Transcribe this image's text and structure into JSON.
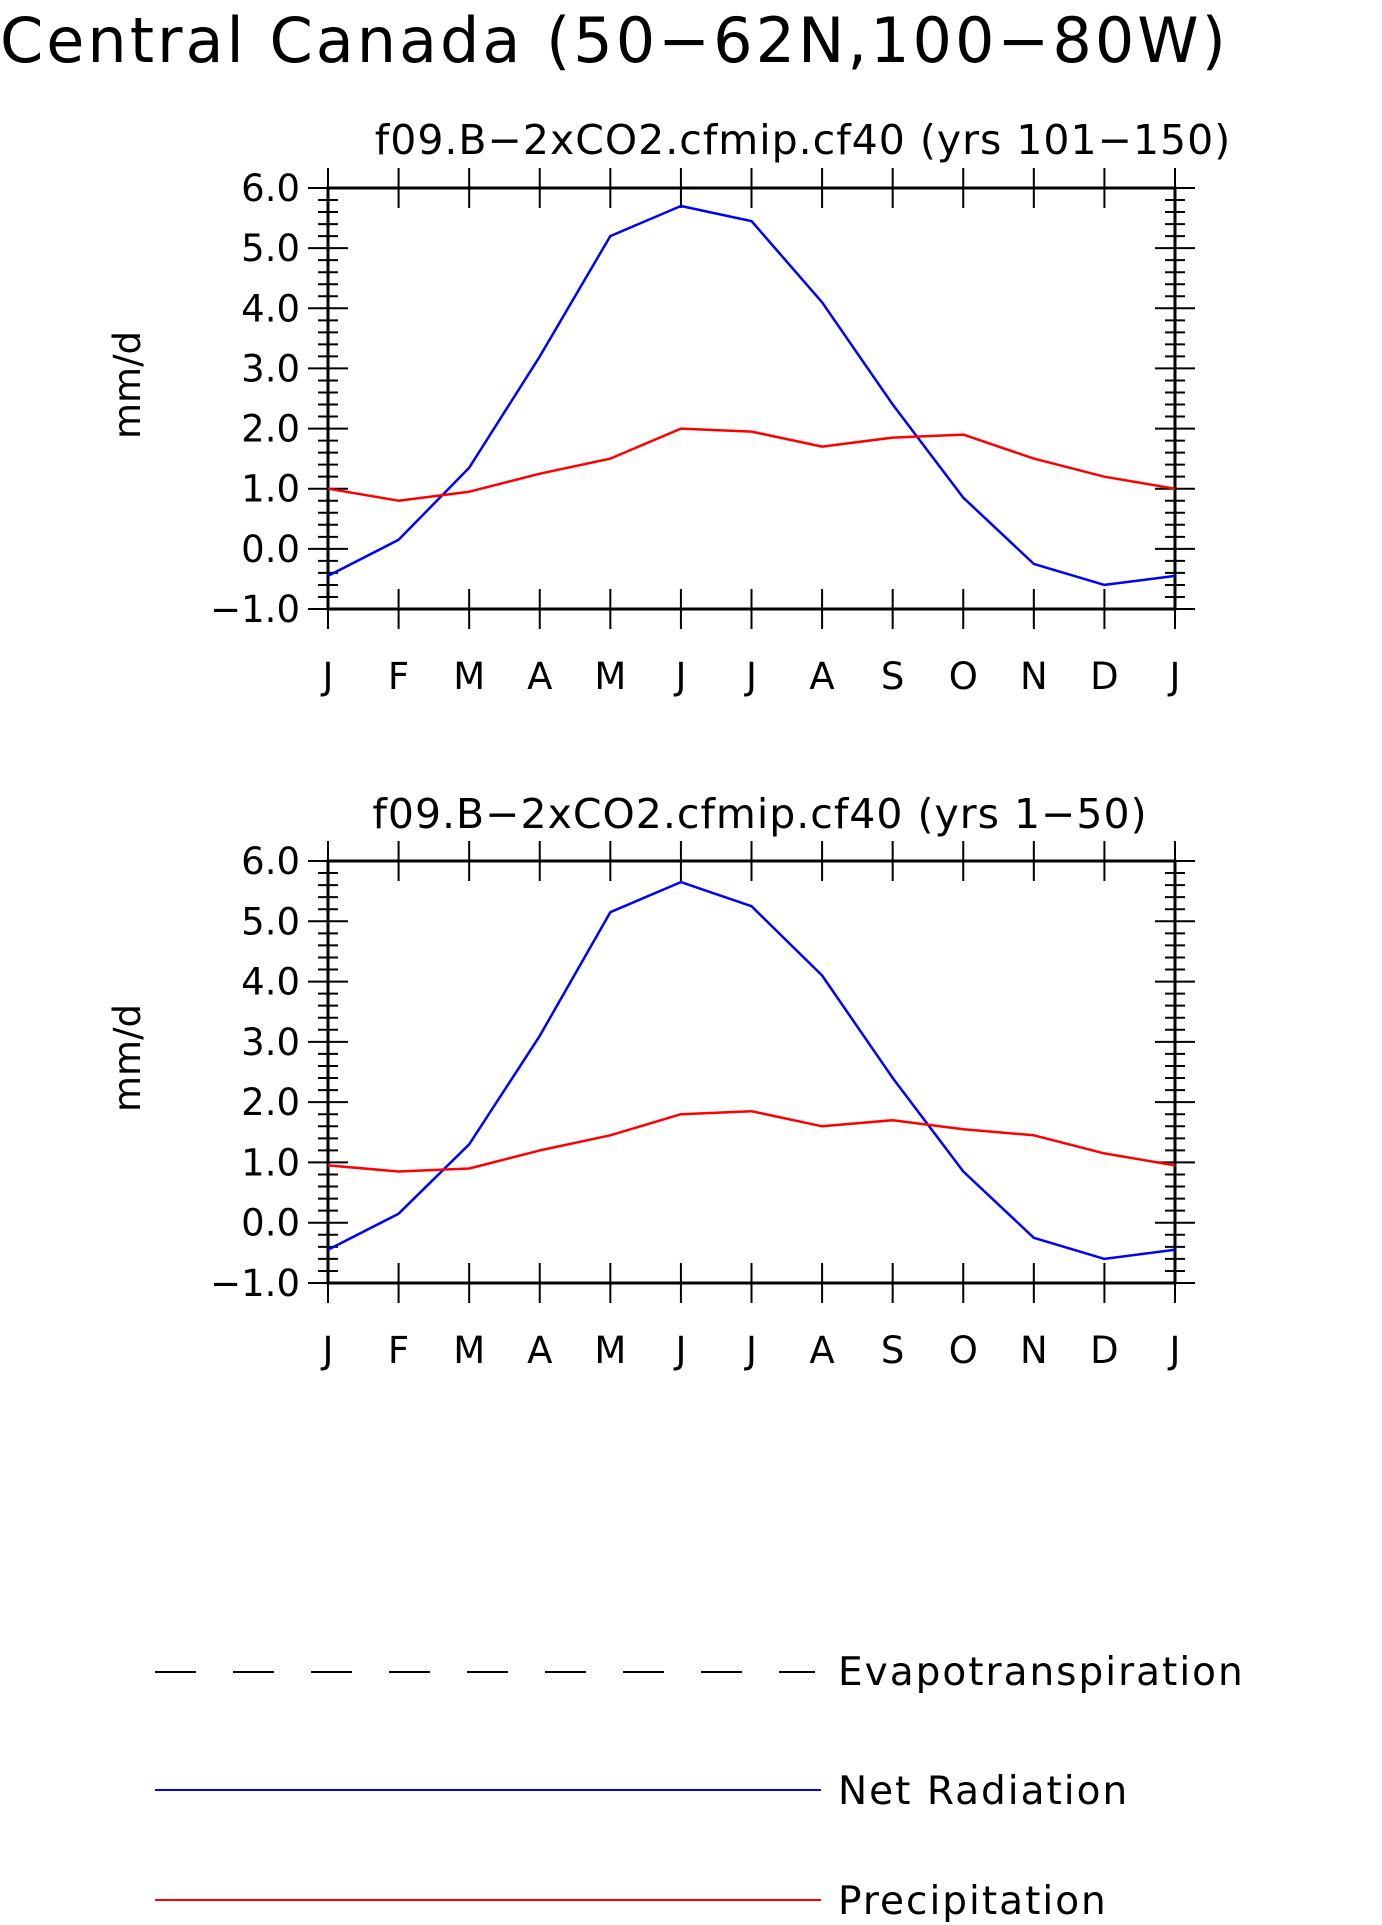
{
  "title": "Central Canada (50−62N,100−80W)",
  "colors": {
    "net_radiation": "#0000ff",
    "precipitation": "#ff0000",
    "evapotranspiration": "#000000",
    "axes": "#000000"
  },
  "legend": {
    "items": [
      {
        "label": "Evapotranspiration",
        "color": "#000000",
        "style": "dashed"
      },
      {
        "label": "Net Radiation",
        "color": "#0000ff",
        "style": "solid"
      },
      {
        "label": "Precipitation",
        "color": "#ff0000",
        "style": "solid"
      }
    ]
  },
  "chart_data": [
    {
      "type": "line",
      "title": "f09.B−2xCO2.cfmip.cf40 (yrs 101−150)",
      "ylabel": "mm/d",
      "xlabel": "",
      "ylim": [
        -1.0,
        6.0
      ],
      "yticks": [
        "−1.0",
        "0.0",
        "1.0",
        "2.0",
        "3.0",
        "4.0",
        "5.0",
        "6.0"
      ],
      "categories": [
        "J",
        "F",
        "M",
        "A",
        "M",
        "J",
        "J",
        "A",
        "S",
        "O",
        "N",
        "D",
        "J"
      ],
      "grid": false,
      "series": [
        {
          "name": "Net Radiation",
          "color": "#0000ff",
          "values": [
            -0.45,
            0.15,
            1.35,
            3.2,
            5.2,
            5.7,
            5.45,
            4.1,
            2.4,
            0.85,
            -0.25,
            -0.6,
            -0.45
          ]
        },
        {
          "name": "Precipitation",
          "color": "#ff0000",
          "values": [
            1.0,
            0.8,
            0.95,
            1.25,
            1.5,
            2.0,
            1.95,
            1.7,
            1.85,
            1.9,
            1.5,
            1.2,
            1.0
          ]
        }
      ]
    },
    {
      "type": "line",
      "title": "f09.B−2xCO2.cfmip.cf40 (yrs 1−50)",
      "ylabel": "mm/d",
      "xlabel": "",
      "ylim": [
        -1.0,
        6.0
      ],
      "yticks": [
        "−1.0",
        "0.0",
        "1.0",
        "2.0",
        "3.0",
        "4.0",
        "5.0",
        "6.0"
      ],
      "categories": [
        "J",
        "F",
        "M",
        "A",
        "M",
        "J",
        "J",
        "A",
        "S",
        "O",
        "N",
        "D",
        "J"
      ],
      "grid": false,
      "series": [
        {
          "name": "Net Radiation",
          "color": "#0000ff",
          "values": [
            -0.45,
            0.15,
            1.3,
            3.1,
            5.15,
            5.65,
            5.25,
            4.1,
            2.4,
            0.85,
            -0.25,
            -0.6,
            -0.45
          ]
        },
        {
          "name": "Precipitation",
          "color": "#ff0000",
          "values": [
            0.95,
            0.85,
            0.9,
            1.2,
            1.45,
            1.8,
            1.85,
            1.6,
            1.7,
            1.55,
            1.45,
            1.15,
            0.95
          ]
        }
      ]
    }
  ]
}
